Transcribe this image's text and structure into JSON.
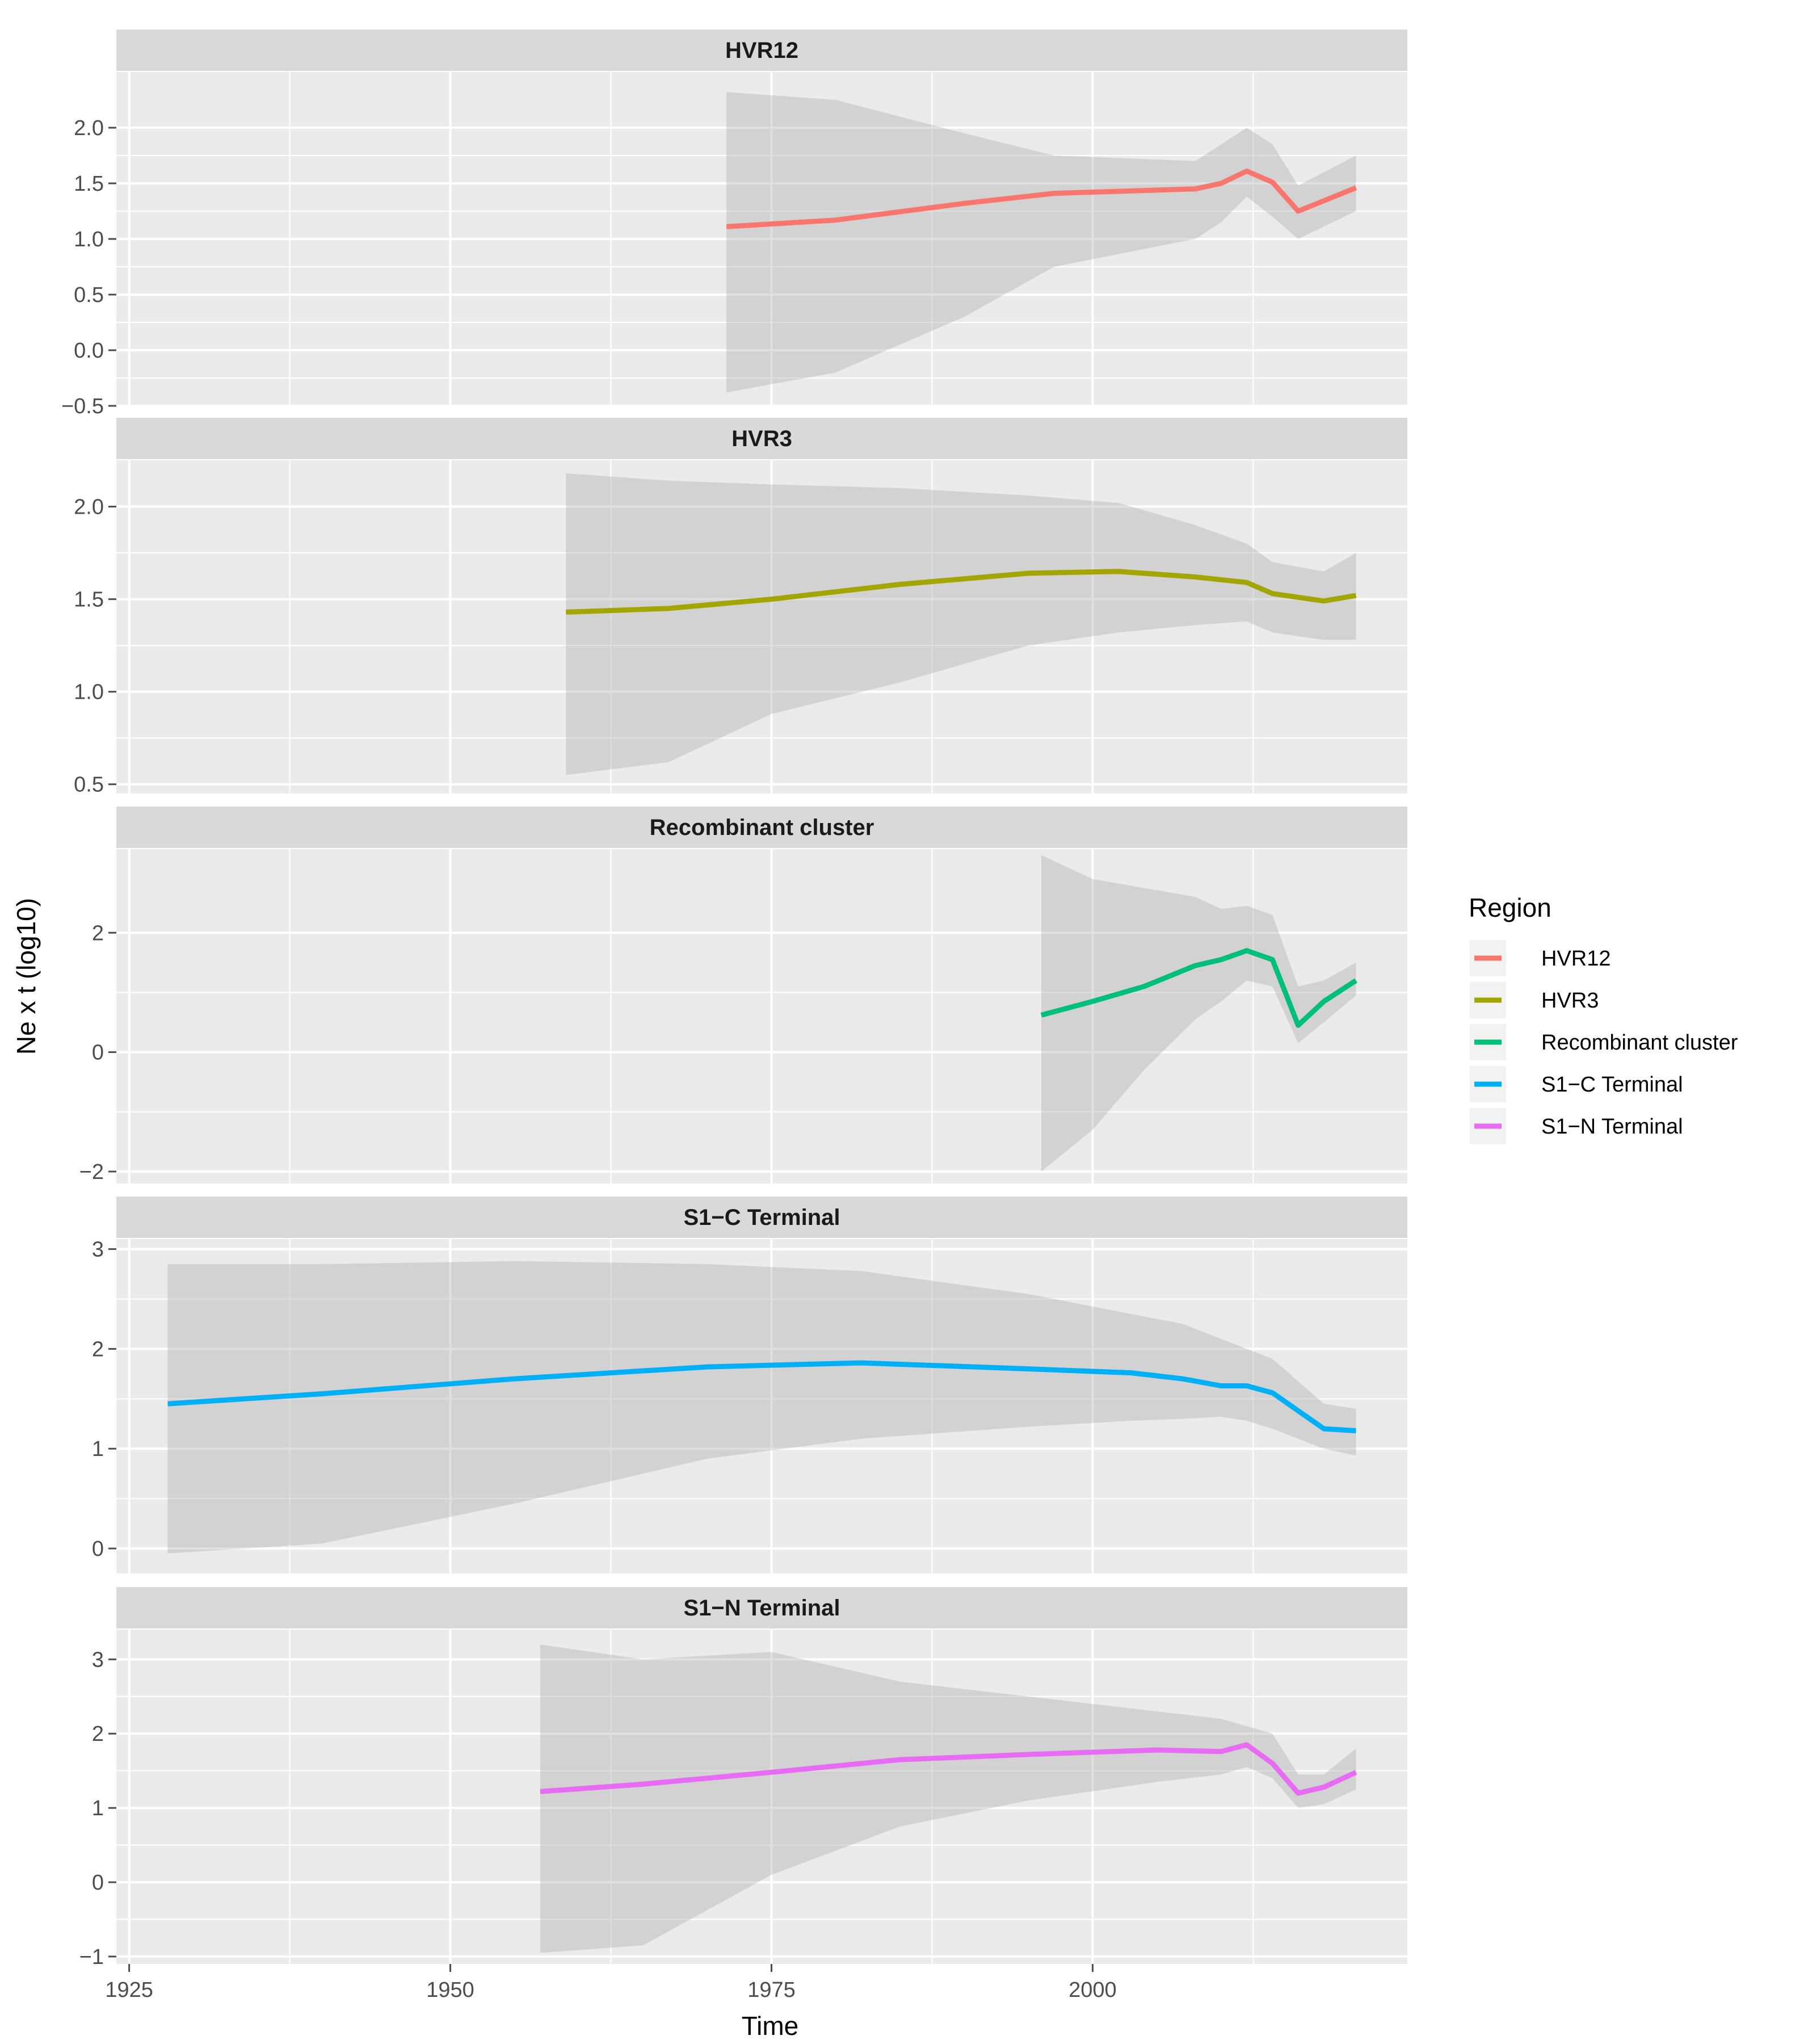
{
  "chart_data": {
    "type": "line",
    "layout": "faceted",
    "xlabel": "Time",
    "ylabel": "Ne x t (log10)",
    "x_ticks": [
      1925,
      1950,
      1975,
      2000
    ],
    "x_tick_labels": [
      "1925",
      "1950",
      "1975",
      "2000"
    ],
    "xlim": [
      1924,
      2024.5
    ],
    "legend": {
      "title": "Region",
      "position": "right",
      "entries": [
        {
          "label": "HVR12",
          "color": "#F8766D"
        },
        {
          "label": "HVR3",
          "color": "#A3A500"
        },
        {
          "label": "Recombinant cluster",
          "color": "#00BF7D"
        },
        {
          "label": "S1−C Terminal",
          "color": "#00B0F6"
        },
        {
          "label": "S1−N Terminal",
          "color": "#E76BF3"
        }
      ]
    },
    "panels": [
      {
        "title": "HVR12",
        "color": "#F8766D",
        "ylim": [
          -0.5,
          2.5
        ],
        "y_ticks": [
          -0.5,
          0.0,
          0.5,
          1.0,
          1.5,
          2.0
        ],
        "y_tick_labels": [
          "−0.5",
          "0.0",
          "0.5",
          "1.0",
          "1.5",
          "2.0"
        ],
        "series": [
          {
            "name": "HVR12",
            "x": [
              1971.5,
              1980,
              1990,
              1997,
              2008,
              2010,
              2012,
              2014,
              2016,
              2020.5
            ],
            "y": [
              1.11,
              1.17,
              1.32,
              1.41,
              1.45,
              1.5,
              1.61,
              1.51,
              1.25,
              1.46
            ],
            "lower": [
              -0.38,
              -0.2,
              0.3,
              0.75,
              1.0,
              1.15,
              1.38,
              1.2,
              1.0,
              1.25
            ],
            "upper": [
              2.32,
              2.25,
              1.95,
              1.75,
              1.7,
              1.85,
              2.0,
              1.85,
              1.48,
              1.75
            ]
          }
        ]
      },
      {
        "title": "HVR3",
        "color": "#A3A500",
        "ylim": [
          0.45,
          2.25
        ],
        "y_ticks": [
          0.5,
          1.0,
          1.5,
          2.0
        ],
        "y_tick_labels": [
          "0.5",
          "1.0",
          "1.5",
          "2.0"
        ],
        "series": [
          {
            "name": "HVR3",
            "x": [
              1959,
              1967,
              1975,
              1985,
              1995,
              2002,
              2008,
              2012,
              2014,
              2018,
              2020.5
            ],
            "y": [
              1.43,
              1.45,
              1.5,
              1.58,
              1.64,
              1.65,
              1.62,
              1.59,
              1.53,
              1.49,
              1.52
            ],
            "lower": [
              0.55,
              0.62,
              0.88,
              1.05,
              1.25,
              1.32,
              1.36,
              1.38,
              1.32,
              1.28,
              1.28
            ],
            "upper": [
              2.18,
              2.14,
              2.12,
              2.1,
              2.06,
              2.02,
              1.9,
              1.8,
              1.7,
              1.65,
              1.75
            ]
          }
        ]
      },
      {
        "title": "Recombinant cluster",
        "color": "#00BF7D",
        "ylim": [
          -2.2,
          3.4
        ],
        "y_ticks": [
          -2,
          0,
          2
        ],
        "y_tick_labels": [
          "−2",
          "0",
          "2"
        ],
        "series": [
          {
            "name": "Recombinant cluster",
            "x": [
              1996,
              2000,
              2004,
              2008,
              2010,
              2012,
              2014,
              2016,
              2018,
              2020.5
            ],
            "y": [
              0.62,
              0.85,
              1.1,
              1.45,
              1.55,
              1.7,
              1.55,
              0.45,
              0.85,
              1.2
            ],
            "lower": [
              -2.0,
              -1.3,
              -0.3,
              0.55,
              0.85,
              1.2,
              1.1,
              0.15,
              0.5,
              0.95
            ],
            "upper": [
              3.3,
              2.9,
              2.75,
              2.6,
              2.4,
              2.45,
              2.3,
              1.1,
              1.2,
              1.5
            ]
          }
        ]
      },
      {
        "title": "S1−C Terminal",
        "color": "#00B0F6",
        "ylim": [
          -0.25,
          3.1
        ],
        "y_ticks": [
          0,
          1,
          2,
          3
        ],
        "y_tick_labels": [
          "0",
          "1",
          "2",
          "3"
        ],
        "series": [
          {
            "name": "S1−C Terminal",
            "x": [
              1928,
              1940,
              1955,
              1970,
              1982,
              1995,
              2003,
              2007,
              2010,
              2012,
              2014,
              2018,
              2020.5
            ],
            "y": [
              1.45,
              1.55,
              1.7,
              1.82,
              1.86,
              1.8,
              1.76,
              1.7,
              1.63,
              1.63,
              1.56,
              1.2,
              1.18
            ],
            "lower": [
              -0.05,
              0.05,
              0.45,
              0.9,
              1.1,
              1.22,
              1.28,
              1.3,
              1.32,
              1.28,
              1.2,
              1.0,
              0.93
            ],
            "upper": [
              2.85,
              2.85,
              2.88,
              2.85,
              2.78,
              2.55,
              2.35,
              2.25,
              2.1,
              2.0,
              1.9,
              1.45,
              1.4
            ]
          }
        ]
      },
      {
        "title": "S1−N Terminal",
        "color": "#E76BF3",
        "ylim": [
          -1.1,
          3.4
        ],
        "y_ticks": [
          -1,
          0,
          1,
          2,
          3
        ],
        "y_tick_labels": [
          "−1",
          "0",
          "1",
          "2",
          "3"
        ],
        "series": [
          {
            "name": "S1−N Terminal",
            "x": [
              1957,
              1965,
              1975,
              1985,
              1995,
              2005,
              2010,
              2012,
              2014,
              2016,
              2018,
              2020.5
            ],
            "y": [
              1.22,
              1.32,
              1.48,
              1.65,
              1.72,
              1.78,
              1.76,
              1.85,
              1.6,
              1.2,
              1.28,
              1.48
            ],
            "lower": [
              -0.95,
              -0.85,
              0.1,
              0.75,
              1.1,
              1.35,
              1.45,
              1.55,
              1.4,
              1.0,
              1.05,
              1.25
            ],
            "upper": [
              3.2,
              3.0,
              3.1,
              2.7,
              2.5,
              2.3,
              2.2,
              2.1,
              2.0,
              1.45,
              1.45,
              1.8
            ]
          }
        ]
      }
    ]
  }
}
